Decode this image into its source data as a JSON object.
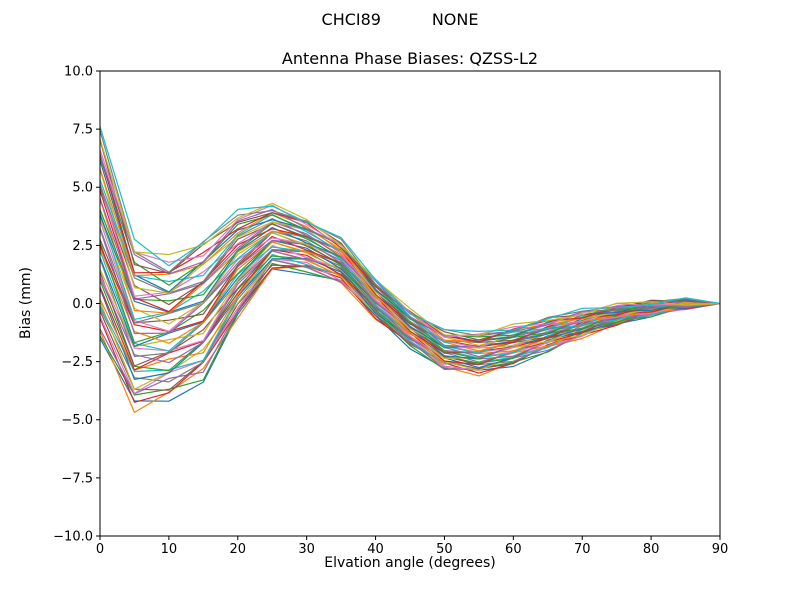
{
  "figure": {
    "suptitle": "CHCI89          NONE",
    "title": "Antenna Phase Biases: QZSS-L2",
    "xlabel": "Elvation angle (degrees)",
    "ylabel": "Bias (mm)"
  },
  "chart_data": {
    "type": "line",
    "suptitle": "CHCI89          NONE",
    "title": "Antenna Phase Biases: QZSS-L2",
    "xlabel": "Elvation angle (degrees)",
    "ylabel": "Bias (mm)",
    "xlim": [
      0,
      90
    ],
    "ylim": [
      -10.0,
      10.0
    ],
    "xticks": [
      0,
      10,
      20,
      30,
      40,
      50,
      60,
      70,
      80,
      90
    ],
    "xtick_labels": [
      "0",
      "10",
      "20",
      "30",
      "40",
      "50",
      "60",
      "70",
      "80",
      "90"
    ],
    "yticks": [
      -10.0,
      -7.5,
      -5.0,
      -2.5,
      0.0,
      2.5,
      5.0,
      7.5,
      10.0
    ],
    "ytick_labels": [
      "−10.0",
      "−7.5",
      "−5.0",
      "−2.5",
      "0.0",
      "2.5",
      "5.0",
      "7.5",
      "10.0"
    ],
    "grid": false,
    "legend": "none",
    "description": "Dense bundle of ~50 overlapping antenna phase bias curves; values given as band envelopes read from the plot (mm), lines fill the band and converge to 0 at 90 degrees",
    "x": [
      0,
      5,
      10,
      15,
      20,
      25,
      30,
      35,
      40,
      45,
      50,
      55,
      60,
      65,
      70,
      75,
      80,
      85,
      90
    ],
    "envelope_top": [
      7.5,
      2.5,
      1.9,
      2.7,
      3.9,
      4.25,
      3.6,
      2.7,
      1.0,
      -0.3,
      -1.2,
      -1.3,
      -1.0,
      -0.65,
      -0.35,
      -0.1,
      0.05,
      0.1,
      0.0
    ],
    "envelope_bottom": [
      -1.5,
      -4.5,
      -4.0,
      -3.2,
      -0.6,
      1.5,
      1.4,
      0.9,
      -0.6,
      -1.8,
      -2.8,
      -3.0,
      -2.6,
      -2.0,
      -1.4,
      -0.85,
      -0.45,
      -0.15,
      0.0
    ],
    "num_lines": 50,
    "jitter_mm": 0.15,
    "palette": [
      "#1f77b4",
      "#ff7f0e",
      "#2ca02c",
      "#d62728",
      "#9467bd",
      "#8c564b",
      "#e377c2",
      "#7f7f7f",
      "#bcbd22",
      "#17becf"
    ]
  }
}
